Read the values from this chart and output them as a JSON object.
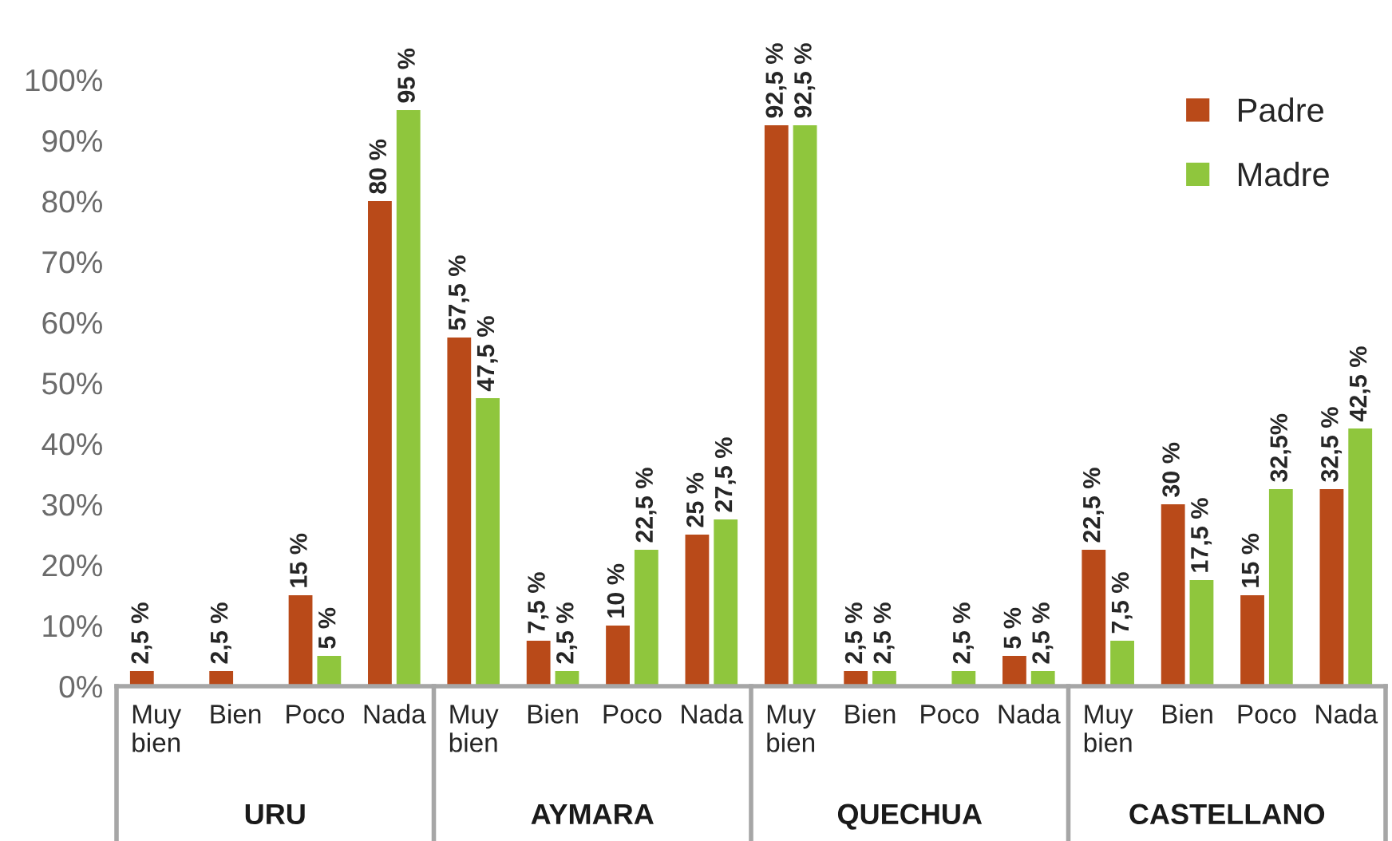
{
  "chart_data": {
    "type": "bar",
    "categories": [
      "Muy bien",
      "Bien",
      "Poco",
      "Nada",
      "Muy bien",
      "Bien",
      "Poco",
      "Nada",
      "Muy bien",
      "Bien",
      "Poco",
      "Nada",
      "Muy bien",
      "Bien",
      "Poco",
      "Nada"
    ],
    "series": [
      {
        "name": "Padre",
        "color": "#b94a19",
        "values": [
          2.5,
          2.5,
          15,
          80,
          57.5,
          7.5,
          10,
          25,
          92.5,
          2.5,
          null,
          5,
          22.5,
          30,
          15,
          32.5
        ],
        "value_labels": [
          "2,5 %",
          "2,5 %",
          "15 %",
          "80 %",
          "57,5 %",
          "7,5 %",
          "10 %",
          "25 %",
          "92,5 %",
          "2,5 %",
          null,
          "5 %",
          "22,5 %",
          "30 %",
          "15 %",
          "32,5 %"
        ]
      },
      {
        "name": "Madre",
        "color": "#8fc63d",
        "values": [
          null,
          null,
          5,
          95,
          47.5,
          2.5,
          22.5,
          27.5,
          92.5,
          2.5,
          2.5,
          2.5,
          7.5,
          17.5,
          32.5,
          42.5
        ],
        "value_labels": [
          null,
          null,
          "5 %",
          "95 %",
          "47,5 %",
          "2,5 %",
          "22,5 %",
          "27,5 %",
          "92,5 %",
          "2,5 %",
          "2,5 %",
          "2,5 %",
          "7,5 %",
          "17,5 %",
          "32,5%",
          "42,5 %"
        ]
      }
    ],
    "ylim": [
      0,
      100
    ],
    "yticks": [
      {
        "value": 0,
        "label": "0%"
      },
      {
        "value": 10,
        "label": "10%"
      },
      {
        "value": 20,
        "label": "20%"
      },
      {
        "value": 30,
        "label": "30%"
      },
      {
        "value": 40,
        "label": "40%"
      },
      {
        "value": 50,
        "label": "50%"
      },
      {
        "value": 60,
        "label": "60%"
      },
      {
        "value": 70,
        "label": "70%"
      },
      {
        "value": 80,
        "label": "80%"
      },
      {
        "value": 90,
        "label": "90%"
      },
      {
        "value": 100,
        "label": "100%"
      }
    ],
    "legend": "top right",
    "annotations": [
      "URU",
      "AYMARA",
      "QUECHUA",
      "CASTELLANO"
    ]
  }
}
